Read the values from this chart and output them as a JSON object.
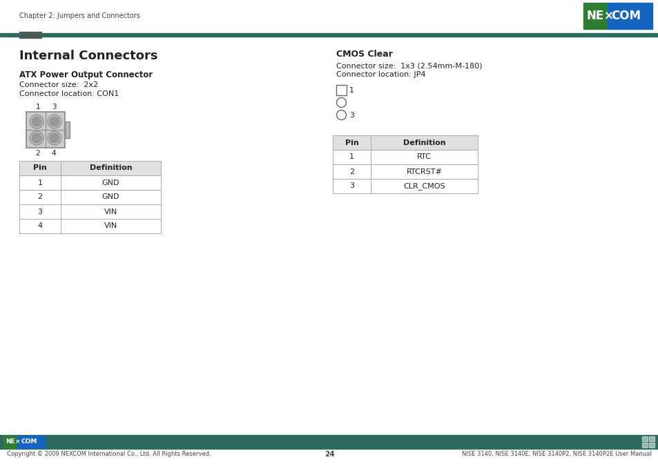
{
  "bg_color": "#ffffff",
  "header_text": "Chapter 2: Jumpers and Connectors",
  "teal_color": "#2d6b5e",
  "dark_rect_color": "#4a5a55",
  "logo_bg": "#1565c0",
  "logo_green_bg": "#2e7d32",
  "page_title": "Internal Connectors",
  "section1_title": "ATX Power Output Connector",
  "section1_size": "Connector size:  2x2",
  "section1_loc": "Connector location: CON1",
  "table1_headers": [
    "Pin",
    "Definition"
  ],
  "table1_rows": [
    [
      "1",
      "GND"
    ],
    [
      "2",
      "GND"
    ],
    [
      "3",
      "VIN"
    ],
    [
      "4",
      "VIN"
    ]
  ],
  "section2_title": "CMOS Clear",
  "section2_size": "Connector size:  1x3 (2.54mm-M-180)",
  "section2_loc": "Connector location: JP4",
  "table2_headers": [
    "Pin",
    "Definition"
  ],
  "table2_rows": [
    [
      "1",
      "RTC"
    ],
    [
      "2",
      "RTCRST#"
    ],
    [
      "3",
      "CLR_CMOS"
    ]
  ],
  "footer_bar_color": "#2d6b5e",
  "footer_logo_bg": "#1565c0",
  "footer_logo_green": "#2e7d32",
  "footer_copyright": "Copyright © 2009 NEXCOM International Co., Ltd. All Rights Reserved.",
  "footer_page": "24",
  "footer_manual": "NISE 3140, NISE 3140E, NISE 3140P2, NISE 3140P2E User Manual",
  "dark_gray": "#222222",
  "mid_gray": "#666666",
  "table_border": "#aaaaaa",
  "table_header_bg": "#e0e0e0",
  "connector_body": "#cccccc",
  "connector_pin": "#bbbbbb",
  "connector_pin_inner": "#999999"
}
